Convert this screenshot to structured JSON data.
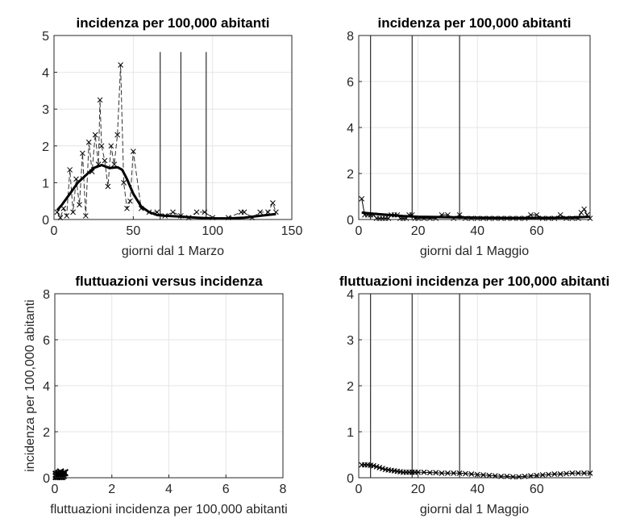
{
  "chart_data": [
    {
      "id": "p1",
      "type": "line",
      "title": "incidenza per 100,000 abitanti",
      "xlabel": "giorni dal 1 Marzo",
      "ylabel": "",
      "xlim": [
        0,
        150
      ],
      "ylim": [
        0,
        5
      ],
      "xticks": [
        0,
        50,
        100,
        150
      ],
      "yticks": [
        0,
        1,
        2,
        3,
        4,
        5
      ],
      "grid": true,
      "vlines": [
        67,
        80,
        96
      ],
      "vline_ymax": 4.55,
      "series": [
        {
          "style": "dashed-x",
          "x": [
            2,
            4,
            6,
            8,
            10,
            12,
            14,
            16,
            18,
            20,
            22,
            24,
            26,
            28,
            29,
            30,
            32,
            34,
            36,
            38,
            40,
            42,
            44,
            46,
            48,
            50,
            55,
            60,
            65,
            70,
            75,
            80,
            85,
            90,
            95,
            100,
            110,
            118,
            120,
            125,
            130,
            135,
            138,
            140
          ],
          "y": [
            0.2,
            0.05,
            0.3,
            0.1,
            1.35,
            0.2,
            1.1,
            0.4,
            1.8,
            0.1,
            2.1,
            1.3,
            2.3,
            1.5,
            3.25,
            2.0,
            1.6,
            0.9,
            2.0,
            1.5,
            2.3,
            4.2,
            1.0,
            0.3,
            0.5,
            1.85,
            0.3,
            0.2,
            0.2,
            0.1,
            0.2,
            0.1,
            0.05,
            0.2,
            0.2,
            0.05,
            0.05,
            0.2,
            0.2,
            0.05,
            0.2,
            0.2,
            0.45,
            0.2
          ]
        },
        {
          "style": "bold",
          "x": [
            2,
            5,
            10,
            15,
            20,
            25,
            30,
            35,
            40,
            43,
            46,
            50,
            55,
            60,
            65,
            70,
            80,
            90,
            100,
            110,
            120,
            130,
            140
          ],
          "y": [
            0.25,
            0.4,
            0.7,
            1.0,
            1.2,
            1.4,
            1.48,
            1.4,
            1.42,
            1.35,
            1.1,
            0.7,
            0.35,
            0.2,
            0.12,
            0.1,
            0.08,
            0.05,
            0.03,
            0.03,
            0.05,
            0.1,
            0.15
          ]
        }
      ]
    },
    {
      "id": "p2",
      "type": "line",
      "title": "incidenza per 100,000 abitanti",
      "xlabel": "giorni dal 1 Maggio",
      "ylabel": "",
      "xlim": [
        0,
        78
      ],
      "ylim": [
        0,
        8
      ],
      "xticks": [
        0,
        20,
        40,
        60
      ],
      "yticks": [
        0,
        2,
        4,
        6,
        8
      ],
      "grid": true,
      "vlines": [
        4,
        18,
        34
      ],
      "vline_ymax": 8,
      "series": [
        {
          "style": "solid-x",
          "x": [
            1,
            2,
            3,
            4,
            5,
            6,
            7,
            8,
            9,
            10,
            11,
            12,
            13,
            14,
            15,
            16,
            17,
            18,
            19,
            20,
            22,
            24,
            26,
            28,
            30,
            32,
            34,
            36,
            38,
            40,
            42,
            44,
            46,
            48,
            50,
            52,
            54,
            56,
            58,
            60,
            62,
            64,
            66,
            68,
            70,
            72,
            74,
            75,
            76,
            77,
            78
          ],
          "y": [
            0.9,
            0.2,
            0.2,
            0.2,
            0.2,
            0.05,
            0.05,
            0.05,
            0.05,
            0.05,
            0.2,
            0.2,
            0.2,
            0.05,
            0.05,
            0.05,
            0.2,
            0.2,
            0.05,
            0.05,
            0.05,
            0.05,
            0.05,
            0.2,
            0.2,
            0.05,
            0.2,
            0.05,
            0.05,
            0.05,
            0.05,
            0.05,
            0.05,
            0.05,
            0.05,
            0.05,
            0.05,
            0.05,
            0.2,
            0.2,
            0.05,
            0.05,
            0.05,
            0.2,
            0.05,
            0.05,
            0.05,
            0.3,
            0.45,
            0.2,
            0.05
          ]
        },
        {
          "style": "bold",
          "x": [
            1,
            5,
            10,
            15,
            20,
            30,
            40,
            50,
            60,
            70,
            78
          ],
          "y": [
            0.3,
            0.25,
            0.2,
            0.15,
            0.12,
            0.1,
            0.08,
            0.07,
            0.07,
            0.08,
            0.12
          ]
        }
      ]
    },
    {
      "id": "p3",
      "type": "scatter",
      "title": "fluttuazioni versus incidenza",
      "xlabel": "fluttuazioni incidenza per 100,000 abitanti",
      "ylabel": "incidenza per 100,000 abitanti",
      "xlim": [
        0,
        8
      ],
      "ylim": [
        0,
        8
      ],
      "xticks": [
        0,
        2,
        4,
        6,
        8
      ],
      "yticks": [
        0,
        2,
        4,
        6,
        8
      ],
      "grid": true,
      "vlines": [],
      "series": [
        {
          "style": "x",
          "x": [
            0.05,
            0.1,
            0.15,
            0.2,
            0.25,
            0.3,
            0.1,
            0.2,
            0.3,
            0.05,
            0.15,
            0.35,
            0.25,
            0.12,
            0.08
          ],
          "y": [
            0.05,
            0.1,
            0.2,
            0.05,
            0.15,
            0.2,
            0.05,
            0.25,
            0.1,
            0.15,
            0.05,
            0.22,
            0.05,
            0.15,
            0.1
          ]
        }
      ]
    },
    {
      "id": "p4",
      "type": "line",
      "title": "fluttuazioni incidenza per 100,000 abitanti",
      "xlabel": "giorni dal 1 Maggio",
      "ylabel": "",
      "xlim": [
        0,
        78
      ],
      "ylim": [
        0,
        4
      ],
      "xticks": [
        0,
        20,
        40,
        60
      ],
      "yticks": [
        0,
        1,
        2,
        3,
        4
      ],
      "grid": true,
      "vlines": [
        4,
        18,
        34
      ],
      "vline_ymax": 4,
      "series": [
        {
          "style": "dense-x",
          "x": [
            1,
            2,
            3,
            4,
            5,
            6,
            7,
            8,
            9,
            10,
            11,
            12,
            13,
            14,
            15,
            16,
            17,
            18,
            19,
            20,
            22,
            24,
            26,
            28,
            30,
            32,
            34,
            36,
            38,
            40,
            42,
            44,
            46,
            48,
            50,
            52,
            54,
            56,
            58,
            60,
            62,
            64,
            66,
            68,
            70,
            72,
            74,
            76,
            78
          ],
          "y": [
            0.28,
            0.28,
            0.28,
            0.27,
            0.26,
            0.24,
            0.22,
            0.2,
            0.18,
            0.17,
            0.16,
            0.15,
            0.14,
            0.13,
            0.12,
            0.12,
            0.12,
            0.12,
            0.12,
            0.12,
            0.12,
            0.11,
            0.11,
            0.1,
            0.1,
            0.1,
            0.1,
            0.09,
            0.08,
            0.07,
            0.06,
            0.05,
            0.04,
            0.03,
            0.03,
            0.02,
            0.02,
            0.03,
            0.04,
            0.05,
            0.06,
            0.07,
            0.08,
            0.08,
            0.09,
            0.1,
            0.1,
            0.1,
            0.1
          ]
        }
      ]
    }
  ]
}
